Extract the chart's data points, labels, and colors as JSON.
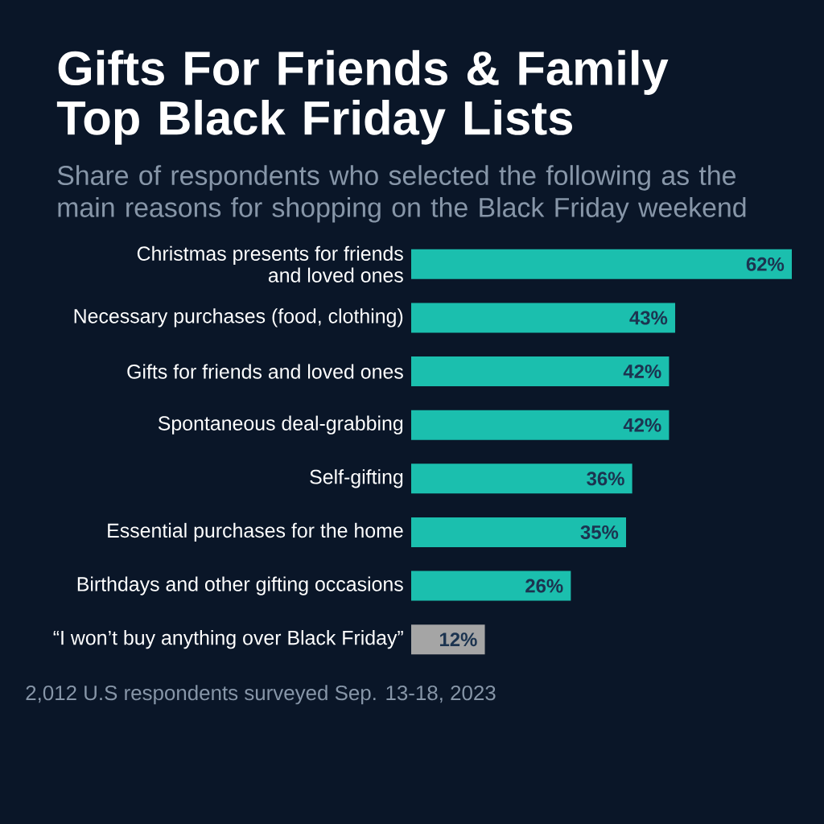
{
  "chart_data": {
    "type": "bar",
    "orientation": "horizontal",
    "title": "Gifts For Friends & Family Top Black Friday Lists",
    "subtitle": "Share of respondents who selected the following as the main reasons for shopping on the Black Friday weekend",
    "categories": [
      "Christmas presents for friends and loved ones",
      "Necessary purchases (food, clothing)",
      "Gifts for friends and loved ones",
      "Spontaneous deal-grabbing",
      "Self-gifting",
      "Essential purchases for the home",
      "Birthdays and other gifting occasions",
      "“I won’t buy anything over Black Friday”"
    ],
    "values": [
      62,
      43,
      42,
      42,
      36,
      35,
      26,
      12
    ],
    "value_labels": [
      "62%",
      "43%",
      "42%",
      "42%",
      "36%",
      "35%",
      "26%",
      "12%"
    ],
    "colors": [
      "#1bbfae",
      "#1bbfae",
      "#1bbfae",
      "#1bbfae",
      "#1bbfae",
      "#1bbfae",
      "#1bbfae",
      "#a5a5a5"
    ],
    "xlim": [
      0,
      62
    ],
    "tick_labels": "y",
    "annotations": [
      "2,012 U.S respondents surveyed Sep. 13-18, 2023"
    ]
  }
}
